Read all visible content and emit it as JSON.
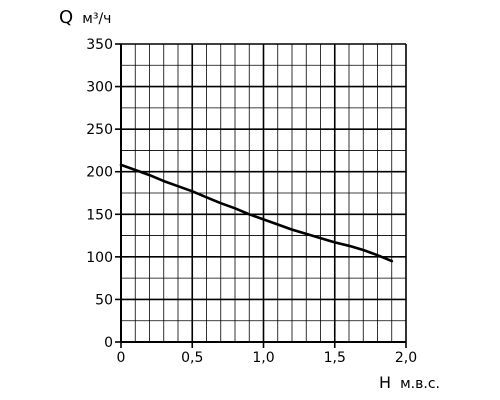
{
  "chart_data": {
    "type": "line",
    "ylabel_main": "Q",
    "ylabel_unit": "м³/ч",
    "xlabel_main": "H",
    "xlabel_unit": "м.в.с.",
    "xlim": [
      0,
      2.0
    ],
    "ylim": [
      0,
      350
    ],
    "x_ticks": [
      {
        "value": 0,
        "label": "0"
      },
      {
        "value": 0.5,
        "label": "0,5"
      },
      {
        "value": 1.0,
        "label": "1,0"
      },
      {
        "value": 1.5,
        "label": "1,5"
      },
      {
        "value": 2.0,
        "label": "2,0"
      }
    ],
    "y_ticks": [
      {
        "value": 0,
        "label": "0"
      },
      {
        "value": 50,
        "label": "50"
      },
      {
        "value": 100,
        "label": "100"
      },
      {
        "value": 150,
        "label": "150"
      },
      {
        "value": 200,
        "label": "200"
      },
      {
        "value": 250,
        "label": "250"
      },
      {
        "value": 300,
        "label": "300"
      },
      {
        "value": 350,
        "label": "350"
      }
    ],
    "grid": true,
    "x_minor_step": 0.1,
    "y_minor_step": 25,
    "series": [
      {
        "x": [
          0,
          0.1,
          0.2,
          0.3,
          0.4,
          0.5,
          0.6,
          0.7,
          0.8,
          0.9,
          1.0,
          1.1,
          1.2,
          1.3,
          1.4,
          1.5,
          1.6,
          1.7,
          1.8,
          1.9
        ],
        "y": [
          208,
          202,
          196,
          189,
          183,
          177,
          170,
          163,
          157,
          150,
          144,
          138,
          132,
          127,
          122,
          117,
          113,
          108,
          102,
          95
        ]
      }
    ]
  }
}
